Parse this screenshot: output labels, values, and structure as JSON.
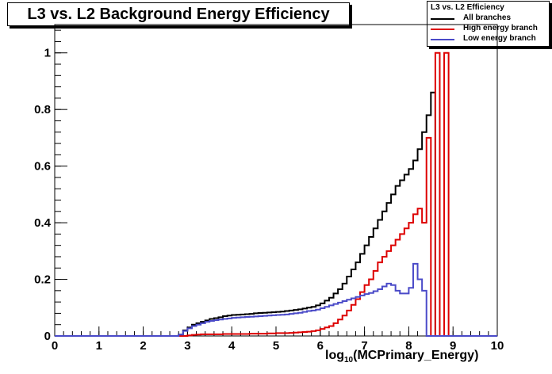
{
  "title": "L3 vs. L2 Background Energy Efficiency",
  "legend": {
    "title": "L3 vs. L2 Efficiency",
    "entries": [
      {
        "label": "All branches",
        "color": "#000000"
      },
      {
        "label": "High energy branch",
        "color": "#dd0000"
      },
      {
        "label": "Low energy branch",
        "color": "#4a4ac8"
      }
    ]
  },
  "xlabel": {
    "prefix": "log",
    "sub": "10",
    "suffix": "(MCPrimary_Energy)"
  },
  "chart_data": {
    "type": "line",
    "xlim": [
      0,
      10
    ],
    "ylim": [
      0,
      1.1
    ],
    "xticks": [
      0,
      1,
      2,
      3,
      4,
      5,
      6,
      7,
      8,
      9,
      10
    ],
    "yticks": [
      0,
      0.2,
      0.4,
      0.6,
      0.8,
      1
    ],
    "grid": false,
    "legend_position": "top-right",
    "bin_width": 0.1,
    "series": [
      {
        "name": "All branches",
        "color": "#000000",
        "x": [
          0.0,
          0.1,
          0.2,
          0.3,
          0.4,
          0.5,
          0.6,
          0.7,
          0.8,
          0.9,
          1.0,
          1.1,
          1.2,
          1.3,
          1.4,
          1.5,
          1.6,
          1.7,
          1.8,
          1.9,
          2.0,
          2.1,
          2.2,
          2.3,
          2.4,
          2.5,
          2.6,
          2.7,
          2.8,
          2.9,
          3.0,
          3.1,
          3.2,
          3.3,
          3.4,
          3.5,
          3.6,
          3.7,
          3.8,
          3.9,
          4.0,
          4.1,
          4.2,
          4.3,
          4.4,
          4.5,
          4.6,
          4.7,
          4.8,
          4.9,
          5.0,
          5.1,
          5.2,
          5.3,
          5.4,
          5.5,
          5.6,
          5.7,
          5.8,
          5.9,
          6.0,
          6.1,
          6.2,
          6.3,
          6.4,
          6.5,
          6.6,
          6.7,
          6.8,
          6.9,
          7.0,
          7.1,
          7.2,
          7.3,
          7.4,
          7.5,
          7.6,
          7.7,
          7.8,
          7.9,
          8.0,
          8.1,
          8.2,
          8.3,
          8.4,
          8.5,
          8.6,
          8.7,
          8.8,
          8.9,
          9.0,
          9.1,
          9.2,
          9.3,
          9.4,
          9.5,
          9.6,
          9.7,
          9.8,
          9.9
        ],
        "values": [
          0,
          0,
          0,
          0,
          0,
          0,
          0,
          0,
          0,
          0,
          0,
          0,
          0,
          0,
          0,
          0,
          0,
          0,
          0,
          0,
          0,
          0,
          0,
          0,
          0,
          0,
          0,
          0,
          0.005,
          0.02,
          0.03,
          0.04,
          0.045,
          0.05,
          0.055,
          0.06,
          0.063,
          0.066,
          0.07,
          0.072,
          0.074,
          0.075,
          0.076,
          0.077,
          0.078,
          0.08,
          0.081,
          0.082,
          0.083,
          0.084,
          0.085,
          0.086,
          0.088,
          0.09,
          0.092,
          0.094,
          0.097,
          0.1,
          0.103,
          0.108,
          0.115,
          0.125,
          0.135,
          0.15,
          0.165,
          0.185,
          0.21,
          0.235,
          0.26,
          0.29,
          0.32,
          0.35,
          0.38,
          0.41,
          0.44,
          0.47,
          0.5,
          0.53,
          0.55,
          0.57,
          0.59,
          0.62,
          0.66,
          0.72,
          0.78,
          0.86,
          0,
          0,
          0,
          0,
          0,
          0,
          0,
          0,
          0,
          0,
          0,
          0,
          0,
          0
        ]
      },
      {
        "name": "High energy branch",
        "color": "#dd0000",
        "x": [
          0.0,
          0.1,
          0.2,
          0.3,
          0.4,
          0.5,
          0.6,
          0.7,
          0.8,
          0.9,
          1.0,
          1.1,
          1.2,
          1.3,
          1.4,
          1.5,
          1.6,
          1.7,
          1.8,
          1.9,
          2.0,
          2.1,
          2.2,
          2.3,
          2.4,
          2.5,
          2.6,
          2.7,
          2.8,
          2.9,
          3.0,
          3.1,
          3.2,
          3.3,
          3.4,
          3.5,
          3.6,
          3.7,
          3.8,
          3.9,
          4.0,
          4.1,
          4.2,
          4.3,
          4.4,
          4.5,
          4.6,
          4.7,
          4.8,
          4.9,
          5.0,
          5.1,
          5.2,
          5.3,
          5.4,
          5.5,
          5.6,
          5.7,
          5.8,
          5.9,
          6.0,
          6.1,
          6.2,
          6.3,
          6.4,
          6.5,
          6.6,
          6.7,
          6.8,
          6.9,
          7.0,
          7.1,
          7.2,
          7.3,
          7.4,
          7.5,
          7.6,
          7.7,
          7.8,
          7.9,
          8.0,
          8.1,
          8.2,
          8.3,
          8.4,
          8.5,
          8.6,
          8.7,
          8.8,
          8.9,
          9.0,
          9.1,
          9.2,
          9.3,
          9.4,
          9.5,
          9.6,
          9.7,
          9.8,
          9.9
        ],
        "values": [
          0,
          0,
          0,
          0,
          0,
          0,
          0,
          0,
          0,
          0,
          0,
          0,
          0,
          0,
          0,
          0,
          0,
          0,
          0,
          0,
          0,
          0,
          0,
          0,
          0,
          0,
          0,
          0,
          0,
          0,
          0.002,
          0.004,
          0.005,
          0.006,
          0.006,
          0.006,
          0.006,
          0.006,
          0.007,
          0.007,
          0.007,
          0.007,
          0.007,
          0.007,
          0.008,
          0.008,
          0.008,
          0.008,
          0.009,
          0.009,
          0.01,
          0.01,
          0.01,
          0.011,
          0.012,
          0.013,
          0.014,
          0.015,
          0.017,
          0.02,
          0.025,
          0.03,
          0.035,
          0.045,
          0.058,
          0.072,
          0.09,
          0.11,
          0.13,
          0.155,
          0.18,
          0.2,
          0.23,
          0.26,
          0.28,
          0.3,
          0.32,
          0.34,
          0.36,
          0.38,
          0.4,
          0.43,
          0.45,
          0.4,
          0.7,
          0.0,
          1.0,
          0.0,
          1.0,
          0,
          0,
          0,
          0,
          0,
          0,
          0,
          0,
          0,
          0,
          0
        ]
      },
      {
        "name": "Low energy branch",
        "color": "#4a4ac8",
        "x": [
          0.0,
          0.1,
          0.2,
          0.3,
          0.4,
          0.5,
          0.6,
          0.7,
          0.8,
          0.9,
          1.0,
          1.1,
          1.2,
          1.3,
          1.4,
          1.5,
          1.6,
          1.7,
          1.8,
          1.9,
          2.0,
          2.1,
          2.2,
          2.3,
          2.4,
          2.5,
          2.6,
          2.7,
          2.8,
          2.9,
          3.0,
          3.1,
          3.2,
          3.3,
          3.4,
          3.5,
          3.6,
          3.7,
          3.8,
          3.9,
          4.0,
          4.1,
          4.2,
          4.3,
          4.4,
          4.5,
          4.6,
          4.7,
          4.8,
          4.9,
          5.0,
          5.1,
          5.2,
          5.3,
          5.4,
          5.5,
          5.6,
          5.7,
          5.8,
          5.9,
          6.0,
          6.1,
          6.2,
          6.3,
          6.4,
          6.5,
          6.6,
          6.7,
          6.8,
          6.9,
          7.0,
          7.1,
          7.2,
          7.3,
          7.4,
          7.5,
          7.6,
          7.7,
          7.8,
          7.9,
          8.0,
          8.1,
          8.2,
          8.3,
          8.4,
          8.5,
          8.6,
          8.7,
          8.8,
          8.9,
          9.0,
          9.1,
          9.2,
          9.3,
          9.4,
          9.5,
          9.6,
          9.7,
          9.8,
          9.9
        ],
        "values": [
          0,
          0,
          0,
          0,
          0,
          0,
          0,
          0,
          0,
          0,
          0,
          0,
          0,
          0,
          0,
          0,
          0,
          0,
          0,
          0,
          0,
          0,
          0,
          0,
          0,
          0,
          0,
          0,
          0.005,
          0.018,
          0.027,
          0.035,
          0.04,
          0.045,
          0.05,
          0.053,
          0.056,
          0.058,
          0.06,
          0.062,
          0.064,
          0.065,
          0.066,
          0.067,
          0.068,
          0.069,
          0.07,
          0.071,
          0.072,
          0.073,
          0.074,
          0.075,
          0.076,
          0.078,
          0.08,
          0.082,
          0.085,
          0.088,
          0.09,
          0.093,
          0.098,
          0.103,
          0.108,
          0.113,
          0.118,
          0.123,
          0.128,
          0.133,
          0.138,
          0.143,
          0.148,
          0.152,
          0.158,
          0.165,
          0.175,
          0.185,
          0.18,
          0.16,
          0.15,
          0.15,
          0.17,
          0.255,
          0.2,
          0.16,
          0.0,
          0,
          0,
          0,
          0,
          0,
          0,
          0,
          0,
          0,
          0,
          0,
          0,
          0,
          0,
          0
        ]
      }
    ]
  }
}
